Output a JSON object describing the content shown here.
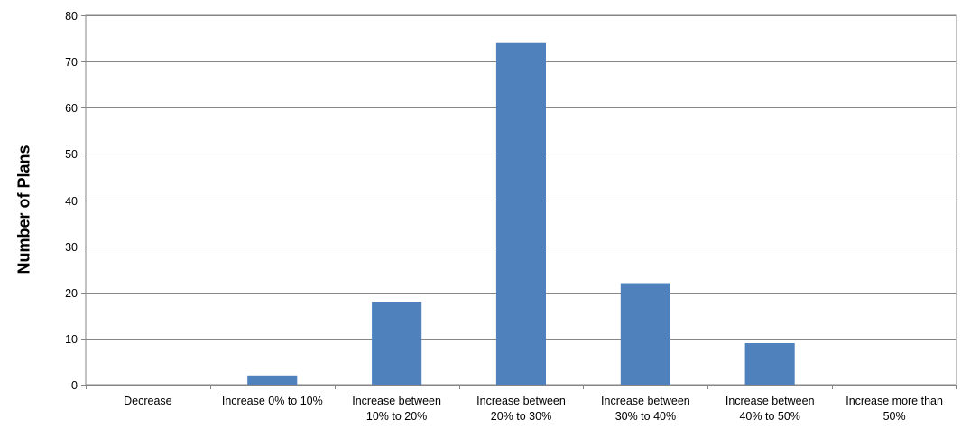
{
  "chart_data": {
    "type": "bar",
    "title": "",
    "xlabel": "",
    "ylabel": "Number of Plans",
    "ylim": [
      0,
      80
    ],
    "yticks": [
      0,
      10,
      20,
      30,
      40,
      50,
      60,
      70,
      80
    ],
    "grid": true,
    "legend": "none",
    "bar_color": "#4f81bd",
    "categories": [
      "Decrease",
      "Increase 0% to 10%",
      "Increase between 10% to 20%",
      "Increase between 20% to 30%",
      "Increase between 30% to 40%",
      "Increase between 40% to 50%",
      "Increase more than 50%"
    ],
    "category_lines": [
      [
        "Decrease"
      ],
      [
        "Increase 0% to 10%"
      ],
      [
        "Increase between",
        "10% to 20%"
      ],
      [
        "Increase between",
        "20% to 30%"
      ],
      [
        "Increase between",
        "30% to 40%"
      ],
      [
        "Increase between",
        "40% to 50%"
      ],
      [
        "Increase more than",
        "50%"
      ]
    ],
    "values": [
      0,
      2,
      18,
      74,
      22,
      9,
      0
    ]
  }
}
